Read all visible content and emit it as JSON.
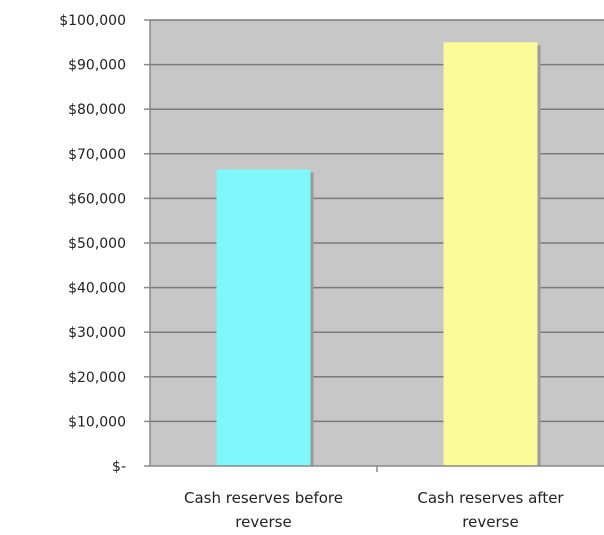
{
  "chart_data": {
    "type": "bar",
    "title": "",
    "xlabel": "",
    "ylabel": "",
    "categories": [
      "Cash reserves before reverse",
      "Cash reserves after reverse"
    ],
    "category_label_lines": [
      [
        "Cash reserves before",
        "reverse"
      ],
      [
        "Cash reserves after",
        "reverse"
      ]
    ],
    "values": [
      66500,
      95000
    ],
    "bar_colors": [
      "#7ff7fb",
      "#fbfb9a"
    ],
    "ylim": [
      0,
      100000
    ],
    "yticks": [
      0,
      10000,
      20000,
      30000,
      40000,
      50000,
      60000,
      70000,
      80000,
      90000,
      100000
    ],
    "ytick_labels": [
      "$-",
      "$10,000",
      "$20,000",
      "$30,000",
      "$40,000",
      "$50,000",
      "$60,000",
      "$70,000",
      "$80,000",
      "$90,000",
      "$100,000"
    ],
    "grid": true,
    "legend": false,
    "plot_background": "#c7c7c7",
    "gridline_color": "#7a7a7a"
  }
}
